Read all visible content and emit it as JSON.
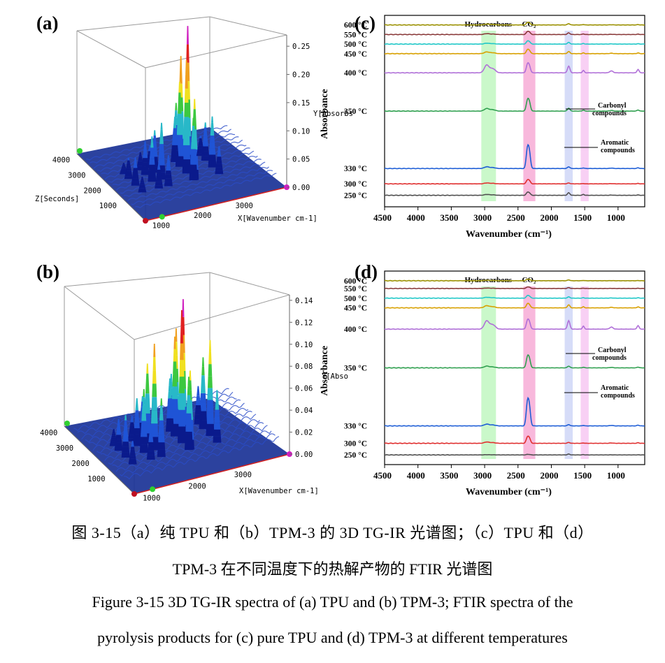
{
  "figure": {
    "panels": {
      "a": {
        "label": "(a)"
      },
      "b": {
        "label": "(b)"
      },
      "c": {
        "label": "(c)"
      },
      "d": {
        "label": "(d)"
      }
    },
    "caption": {
      "cn_line1": "图 3-15（a）纯 TPU 和（b）TPM-3 的 3D TG-IR 光谱图；（c）TPU 和（d）",
      "cn_line2": "TPM-3 在不同温度下的热解产物的 FTIR 光谱图",
      "en_line1": "Figure 3-15 3D TG-IR spectra of (a) TPU and (b) TPM-3; FTIR spectra of the",
      "en_line2": "pyrolysis products for (c) pure TPU and (d) TPM-3 at different temperatures"
    }
  },
  "chart_data": [
    {
      "panel": "a",
      "type": "surface-3d",
      "xlabel": "X[Wavenumber cm-1]",
      "ylabel": "Y[Absorbs",
      "zlabel": "Z[Seconds]",
      "x_ticks": [
        1000,
        2000,
        3000
      ],
      "y_ticks": [
        "0.00",
        "0.05",
        "0.10",
        "0.15",
        "0.20",
        "0.25"
      ],
      "z_ticks": [
        1000,
        2000,
        3000,
        4000
      ],
      "ylim": [
        0,
        0.27
      ],
      "peaks": [
        {
          "x": 2360,
          "y": 0.26
        },
        {
          "x": 2330,
          "y": 0.2
        },
        {
          "x": 1730,
          "y": 0.1
        },
        {
          "x": 1500,
          "y": 0.08
        },
        {
          "x": 2950,
          "y": 0.09
        },
        {
          "x": 1100,
          "y": 0.05
        }
      ],
      "colormap": [
        "#0a1a8c",
        "#1f54d6",
        "#28b8c8",
        "#3cc840",
        "#f0e020",
        "#f0a020",
        "#e02020",
        "#d020c0"
      ]
    },
    {
      "panel": "b",
      "type": "surface-3d",
      "xlabel": "X[Wavenumber cm-1]",
      "ylabel": "Y[Abso",
      "zlabel": "",
      "x_ticks": [
        1000,
        2000,
        3000
      ],
      "y_ticks": [
        "0.00",
        "0.02",
        "0.04",
        "0.06",
        "0.08",
        "0.10",
        "0.12",
        "0.14"
      ],
      "z_ticks": [
        1000,
        2000,
        3000,
        4000
      ],
      "ylim": [
        0,
        0.145
      ],
      "peaks": [
        {
          "x": 2360,
          "y": 0.135
        },
        {
          "x": 2330,
          "y": 0.125
        },
        {
          "x": 1730,
          "y": 0.1
        },
        {
          "x": 2950,
          "y": 0.09
        },
        {
          "x": 1500,
          "y": 0.06
        },
        {
          "x": 1100,
          "y": 0.04
        }
      ],
      "colormap": [
        "#0a1a8c",
        "#1f54d6",
        "#28b8c8",
        "#3cc840",
        "#f0e020",
        "#f0a020",
        "#e02020",
        "#d020c0"
      ]
    },
    {
      "panel": "c",
      "type": "line",
      "xlabel": "Wavenumber (cm⁻¹)",
      "ylabel": "Absorbance",
      "x_ticks": [
        4500,
        4000,
        3500,
        3000,
        2500,
        2000,
        1500,
        1000
      ],
      "xlim": [
        4500,
        600
      ],
      "bands": [
        {
          "label": "Hydrocarbons",
          "from": 3050,
          "to": 2830,
          "color": "#b8f5b8"
        },
        {
          "label": "CO₂",
          "from": 2420,
          "to": 2240,
          "color": "#f5a0d0"
        },
        {
          "label": "",
          "from": 1800,
          "to": 1680,
          "color": "#c8d0f5"
        },
        {
          "label": "",
          "from": 1560,
          "to": 1440,
          "color": "#f5c0f0"
        }
      ],
      "annotations": [
        "Carbonyl",
        "compounds",
        "Aromatic",
        "compounds"
      ],
      "series": [
        {
          "name": "600 °C",
          "color": "#9a9000",
          "offset": 0.05,
          "co2": 0.5,
          "carbonyl": 0.3,
          "hc": 0.2
        },
        {
          "name": "550 °C",
          "color": "#8a3a3a",
          "offset": 0.1,
          "co2": 0.6,
          "carbonyl": 0.4,
          "hc": 0.2
        },
        {
          "name": "500 °C",
          "color": "#20c8c8",
          "offset": 0.15,
          "co2": 0.6,
          "carbonyl": 0.4,
          "hc": 0.2
        },
        {
          "name": "450 °C",
          "color": "#d8a000",
          "offset": 0.2,
          "co2": 0.8,
          "carbonyl": 0.5,
          "hc": 0.4
        },
        {
          "name": "400 °C",
          "color": "#b070d8",
          "offset": 0.3,
          "co2": 1.8,
          "carbonyl": 1.6,
          "hc": 1.8
        },
        {
          "name": "350 °C",
          "color": "#30a050",
          "offset": 0.5,
          "co2": 2.3,
          "carbonyl": 0.7,
          "hc": 0.6
        },
        {
          "name": "330 °C",
          "color": "#1e5ed6",
          "offset": 0.8,
          "co2": 4.3,
          "carbonyl": 0.4,
          "hc": 0.4
        },
        {
          "name": "300 °C",
          "color": "#e03030",
          "offset": 0.88,
          "co2": 0.8,
          "carbonyl": 0.2,
          "hc": 0.2
        },
        {
          "name": "250 °C",
          "color": "#505050",
          "offset": 0.94,
          "co2": 0.6,
          "carbonyl": 0.6,
          "hc": 0.2
        }
      ]
    },
    {
      "panel": "d",
      "type": "line",
      "xlabel": "Wavenumber (cm⁻¹)",
      "ylabel": "Absorbance",
      "x_ticks": [
        4500,
        4000,
        3500,
        3000,
        2500,
        2000,
        1500,
        1000
      ],
      "xlim": [
        4500,
        600
      ],
      "bands": [
        {
          "label": "Hydrocarbons",
          "from": 3050,
          "to": 2830,
          "color": "#b8f5b8"
        },
        {
          "label": "CO₂",
          "from": 2420,
          "to": 2240,
          "color": "#f5a0d0"
        },
        {
          "label": "",
          "from": 1800,
          "to": 1680,
          "color": "#c8d0f5"
        },
        {
          "label": "",
          "from": 1560,
          "to": 1440,
          "color": "#f5c0f0"
        }
      ],
      "annotations": [
        "Carbonyl",
        "compounds",
        "Aromatic",
        "compounds"
      ],
      "series": [
        {
          "name": "600 °C",
          "color": "#9a9000",
          "offset": 0.05,
          "co2": 0.3,
          "carbonyl": 0.2,
          "hc": 0.1
        },
        {
          "name": "550 °C",
          "color": "#8a3a3a",
          "offset": 0.09,
          "co2": 0.3,
          "carbonyl": 0.2,
          "hc": 0.1
        },
        {
          "name": "500 °C",
          "color": "#20c8c8",
          "offset": 0.14,
          "co2": 0.5,
          "carbonyl": 0.3,
          "hc": 0.2
        },
        {
          "name": "450 °C",
          "color": "#d8a000",
          "offset": 0.19,
          "co2": 0.8,
          "carbonyl": 0.7,
          "hc": 0.5
        },
        {
          "name": "400 °C",
          "color": "#b070d8",
          "offset": 0.3,
          "co2": 1.8,
          "carbonyl": 2.0,
          "hc": 1.9
        },
        {
          "name": "350 °C",
          "color": "#30a050",
          "offset": 0.5,
          "co2": 2.3,
          "carbonyl": 0.4,
          "hc": 0.4
        },
        {
          "name": "330 °C",
          "color": "#1e5ed6",
          "offset": 0.8,
          "co2": 5.0,
          "carbonyl": 0.3,
          "hc": 0.4
        },
        {
          "name": "300 °C",
          "color": "#e03030",
          "offset": 0.89,
          "co2": 1.3,
          "carbonyl": 0.2,
          "hc": 0.3
        },
        {
          "name": "250 °C",
          "color": "#505050",
          "offset": 0.95,
          "co2": 0.1,
          "carbonyl": 0.2,
          "hc": 0.05
        }
      ]
    }
  ]
}
